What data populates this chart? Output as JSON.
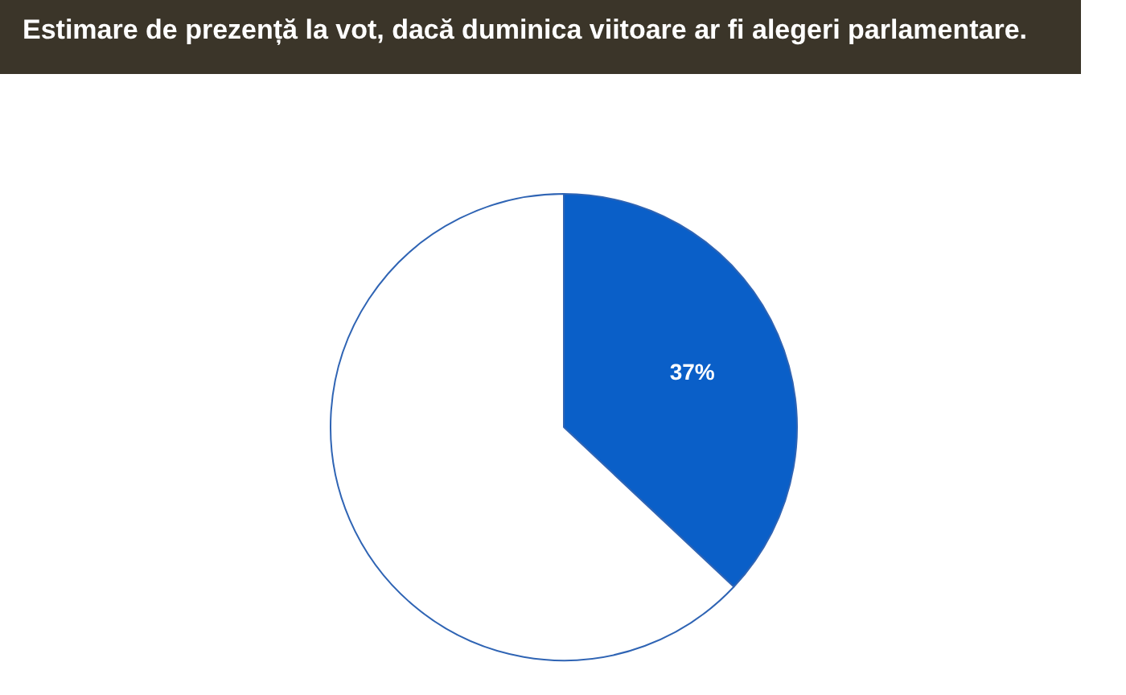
{
  "chart_data": {
    "type": "pie",
    "title": "Estimare de prezență la vot, dacă duminica viitoare ar fi alegeri parlamentare.",
    "categories": [
      null,
      null
    ],
    "values": [
      37,
      63
    ],
    "colors": [
      "#0a5fc8",
      "#ffffff"
    ],
    "value_labels": [
      "37%",
      null
    ]
  }
}
